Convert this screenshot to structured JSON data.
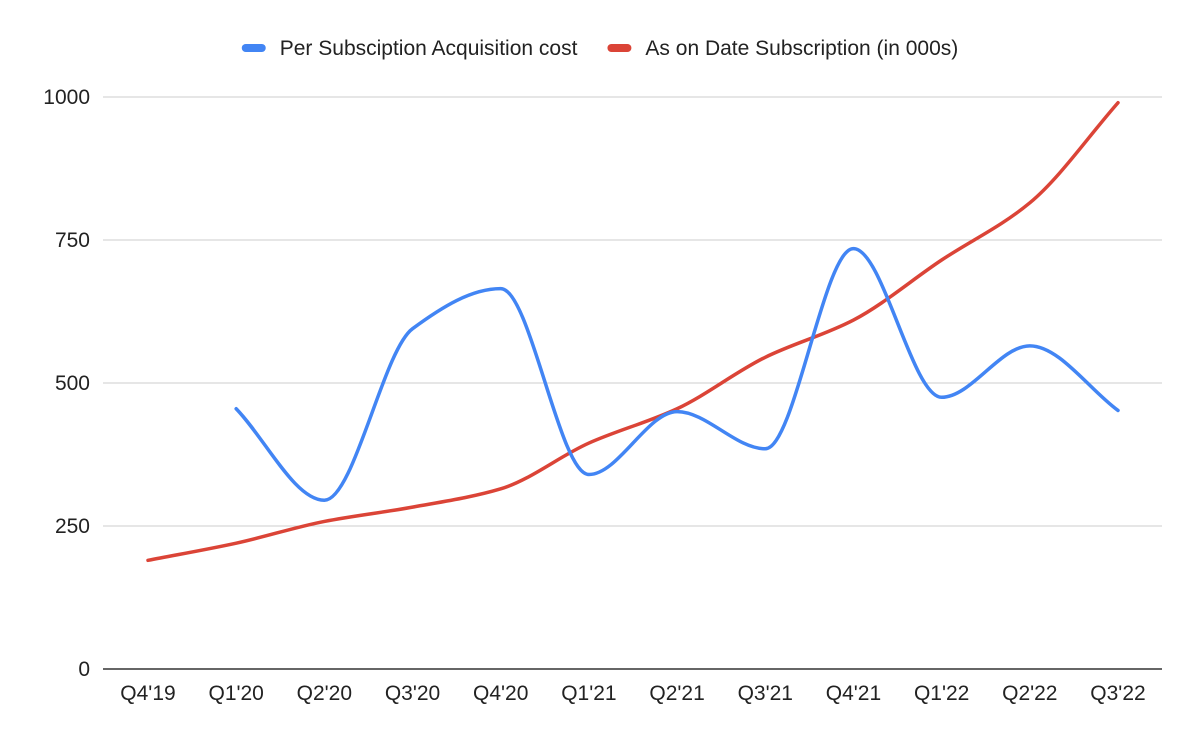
{
  "chart_data": {
    "type": "line",
    "title": "",
    "xlabel": "",
    "ylabel": "",
    "categories": [
      "Q4'19",
      "Q1'20",
      "Q2'20",
      "Q3'20",
      "Q4'20",
      "Q1'21",
      "Q2'21",
      "Q3'21",
      "Q4'21",
      "Q1'22",
      "Q2'22",
      "Q3'22"
    ],
    "ylim": [
      0,
      1000
    ],
    "yticks": [
      "0",
      "250",
      "500",
      "750",
      "1000"
    ],
    "grid": true,
    "legend_position": "top",
    "series": [
      {
        "name": "Per Subsciption Acquisition cost",
        "color": "#4285f4",
        "values": [
          null,
          455,
          295,
          595,
          665,
          340,
          450,
          385,
          735,
          475,
          565,
          452
        ]
      },
      {
        "name": "As on Date Subscription (in 000s)",
        "color": "#db4437",
        "values": [
          190,
          220,
          258,
          283,
          315,
          395,
          455,
          545,
          610,
          715,
          815,
          990
        ]
      }
    ]
  }
}
